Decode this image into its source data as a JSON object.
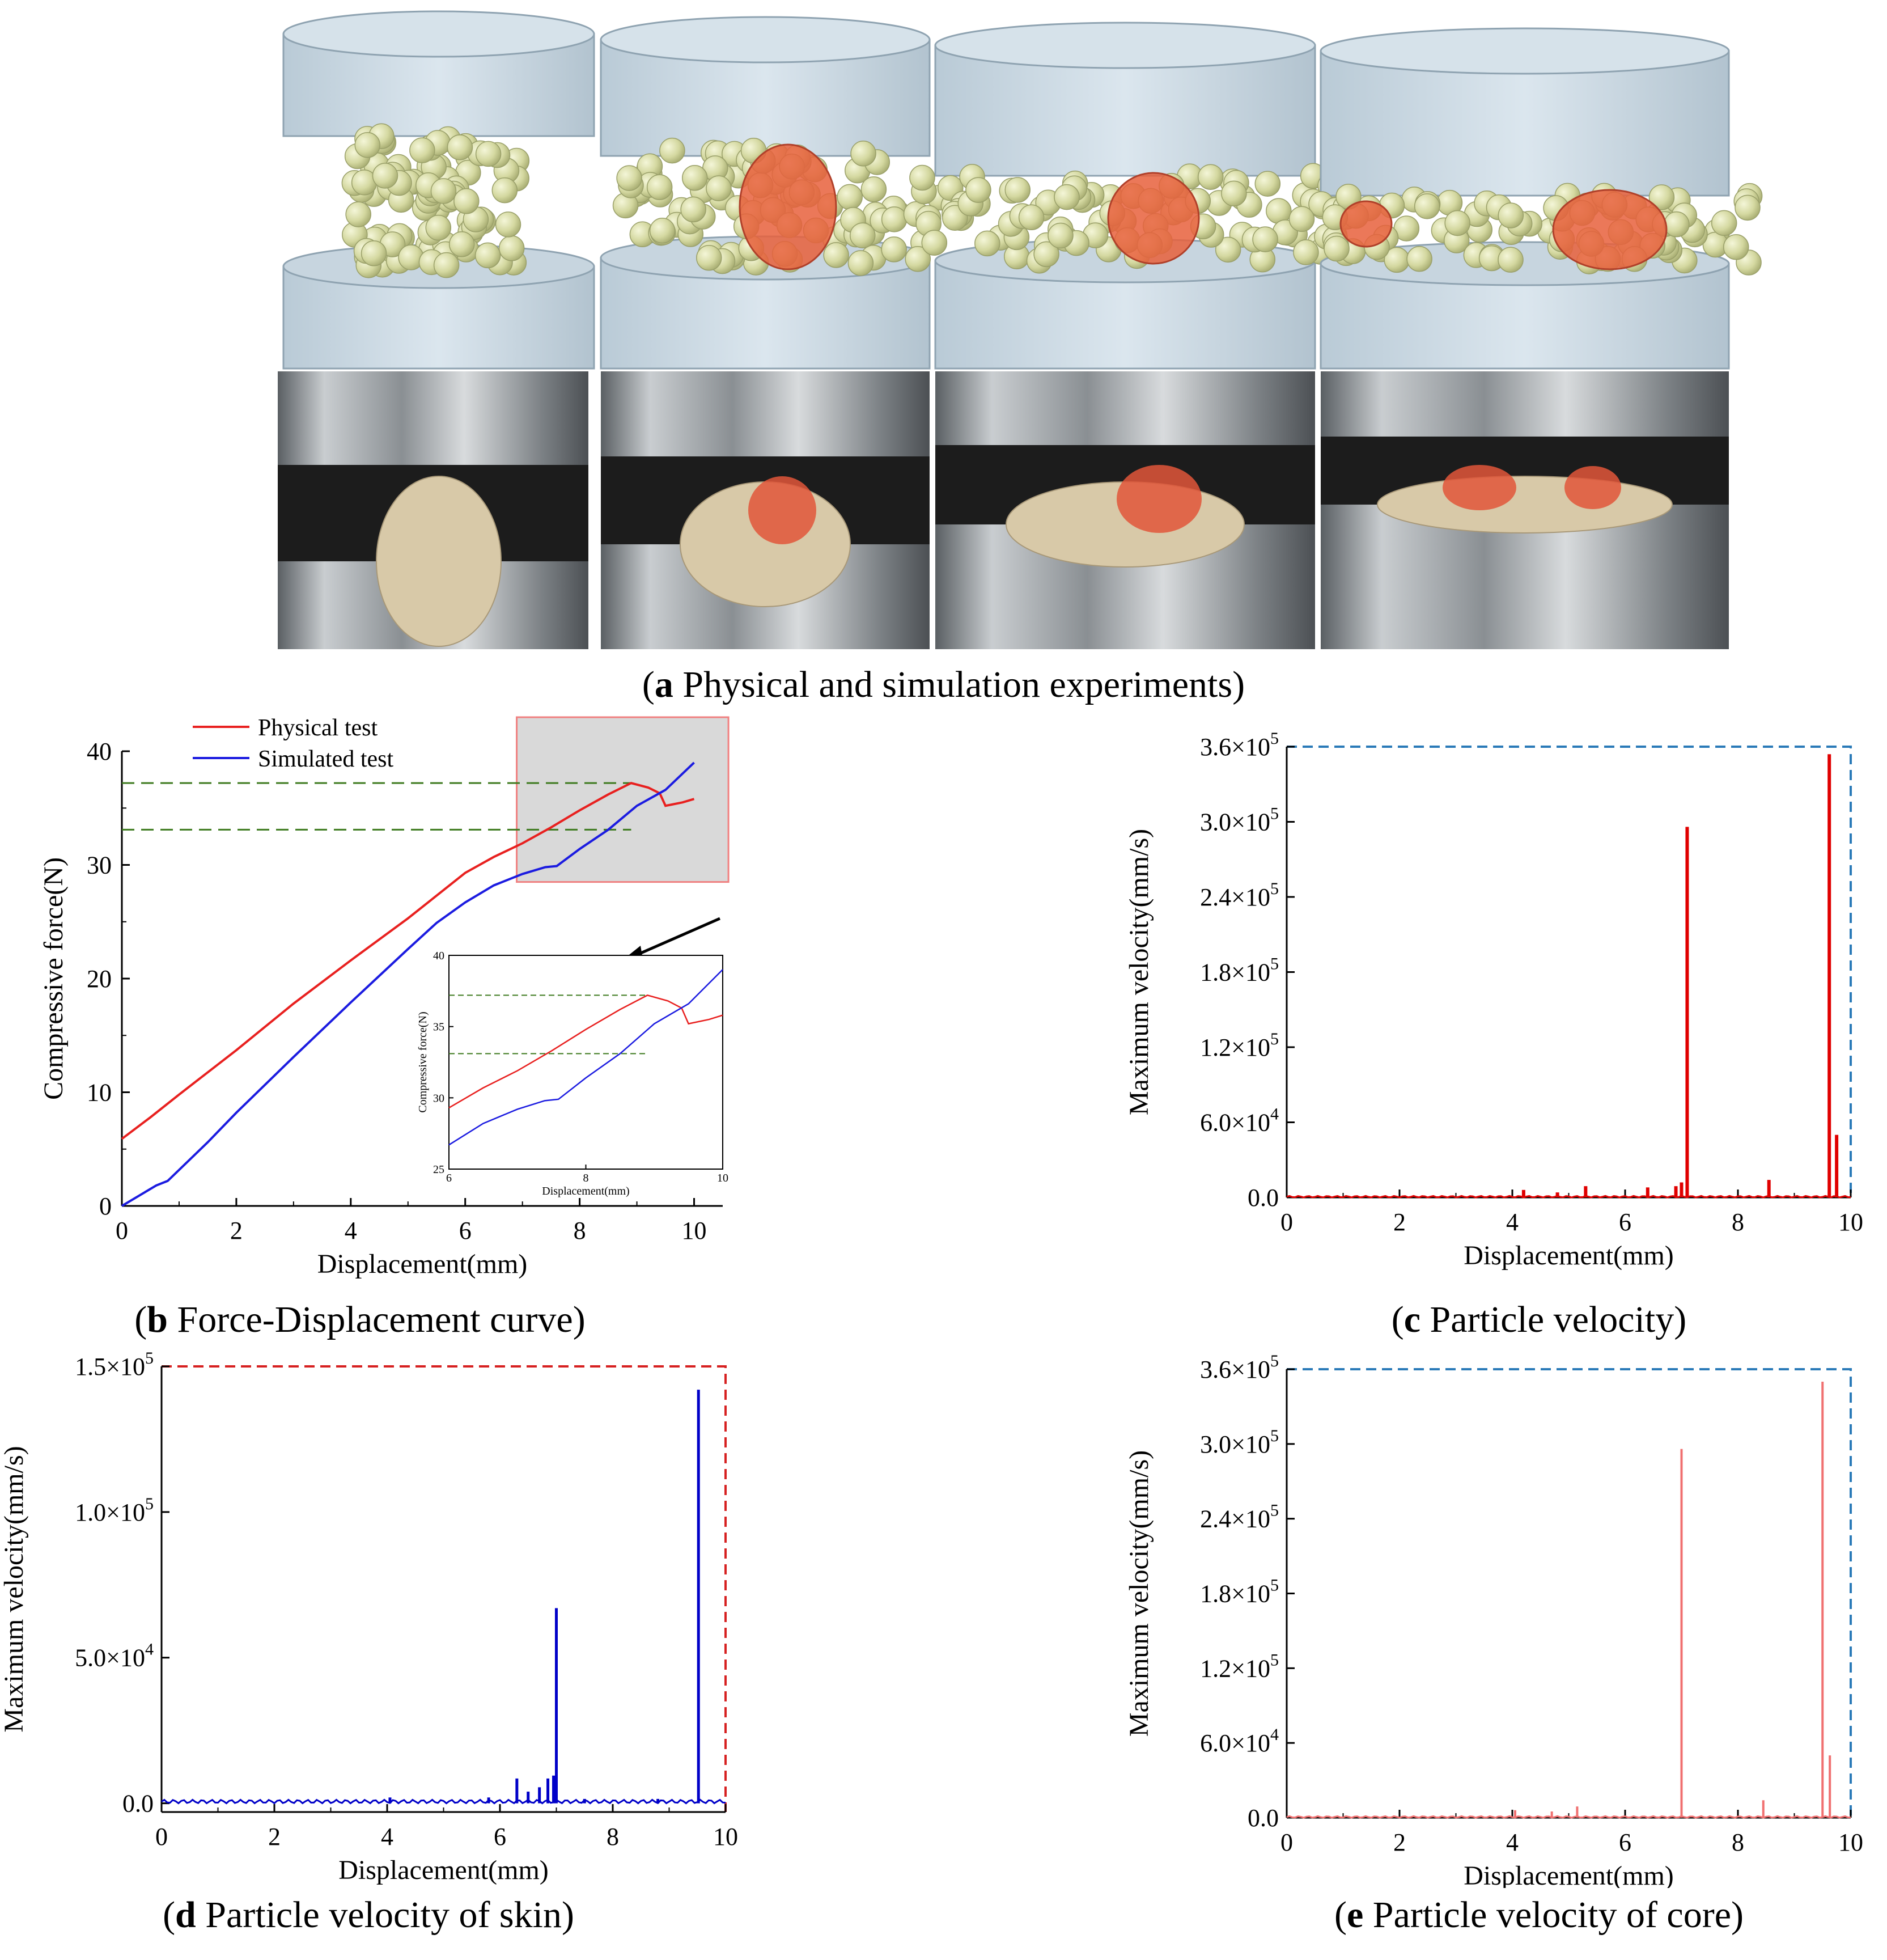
{
  "captions": {
    "a": {
      "letter": "a",
      "text": " Physical and simulation experiments"
    },
    "b": {
      "letter": "b",
      "text": " Force-Displacement curve"
    },
    "c": {
      "letter": "c",
      "text": " Particle velocity"
    },
    "d": {
      "letter": "d",
      "text": " Particle velocity of skin"
    },
    "e": {
      "letter": "e",
      "text": " Particle velocity of core"
    }
  },
  "colors": {
    "physical": "#e8201f",
    "simulated": "#1b1be0",
    "guide": "#3d7a1e",
    "velocity_all": "#e00000",
    "velocity_skin": "#0000c8",
    "velocity_core": "#f07070",
    "frame_blue": "#2a7ab8",
    "frame_red": "#d62020"
  },
  "chart_data": [
    {
      "id": "b",
      "type": "line",
      "xlabel": "Displacement(mm)",
      "ylabel": "Compressive force(N)",
      "xlim": [
        0,
        10.5
      ],
      "ylim": [
        0,
        40
      ],
      "xticks": [
        0,
        2,
        4,
        6,
        8,
        10
      ],
      "yticks": [
        0,
        10,
        20,
        30,
        40
      ],
      "guides_y": [
        37.2,
        33.1
      ],
      "zoom_box_x": [
        6.9,
        10.6
      ],
      "legend_position": "top-left",
      "series": [
        {
          "name": "Physical test",
          "x": [
            0,
            0.5,
            1,
            2,
            3,
            4,
            5,
            6,
            6.5,
            7,
            7.5,
            8,
            8.5,
            8.9,
            9.2,
            9.4,
            9.5,
            9.6,
            9.8,
            10
          ],
          "y": [
            5.9,
            7.8,
            9.8,
            13.7,
            17.8,
            21.6,
            25.3,
            29.3,
            30.7,
            31.9,
            33.3,
            34.8,
            36.2,
            37.2,
            36.8,
            36.3,
            35.2,
            35.3,
            35.5,
            35.8
          ]
        },
        {
          "name": "Simulated test",
          "x": [
            0,
            0.6,
            0.8,
            1.5,
            2,
            3,
            4,
            5,
            5.5,
            6,
            6.5,
            7,
            7.4,
            7.6,
            8,
            8.5,
            9,
            9.5,
            10
          ],
          "y": [
            0,
            1.8,
            2.2,
            5.6,
            8.2,
            13.1,
            17.9,
            22.6,
            24.9,
            26.7,
            28.2,
            29.2,
            29.8,
            29.9,
            31.4,
            33.1,
            35.2,
            36.6,
            39.0
          ]
        }
      ],
      "inset": {
        "xlabel": "Displacement(mm)",
        "ylabel": "Compressive force(N)",
        "xlim": [
          6,
          10
        ],
        "ylim": [
          25,
          40
        ],
        "xticks": [
          6,
          8,
          10
        ],
        "yticks": [
          25,
          30,
          35,
          40
        ]
      }
    },
    {
      "id": "c",
      "type": "line",
      "xlabel": "Displacement(mm)",
      "ylabel": "Maximum velocity(mm/s)",
      "xlim": [
        0,
        10
      ],
      "ylim": [
        0,
        360000
      ],
      "xticks": [
        0,
        2,
        4,
        6,
        8,
        10
      ],
      "ytick_labels": [
        [
          "0.0",
          ""
        ],
        [
          "6.0×10",
          "4"
        ],
        [
          "1.2×10",
          "5"
        ],
        [
          "1.8×10",
          "5"
        ],
        [
          "2.4×10",
          "5"
        ],
        [
          "3.0×10",
          "5"
        ],
        [
          "3.6×10",
          "5"
        ]
      ],
      "spikes": [
        [
          4.2,
          6000
        ],
        [
          4.8,
          4000
        ],
        [
          5.3,
          9000
        ],
        [
          6.4,
          8000
        ],
        [
          6.9,
          9000
        ],
        [
          7.0,
          12000
        ],
        [
          7.1,
          296000
        ],
        [
          8.55,
          14000
        ],
        [
          9.62,
          354000
        ],
        [
          9.75,
          50000
        ]
      ]
    },
    {
      "id": "d",
      "type": "line",
      "xlabel": "Displacement(mm)",
      "ylabel": "Maximum velocity(mm/s)",
      "xlim": [
        0,
        10
      ],
      "ylim": [
        -3000,
        150000
      ],
      "xticks": [
        0,
        2,
        4,
        6,
        8,
        10
      ],
      "ytick_values": [
        0,
        50000,
        100000,
        150000
      ],
      "ytick_labels": [
        [
          "0.0",
          ""
        ],
        [
          "5.0×10",
          "4"
        ],
        [
          "1.0×10",
          "5"
        ],
        [
          "1.5×10",
          "5"
        ]
      ],
      "spikes": [
        [
          4.05,
          2000
        ],
        [
          5.8,
          2000
        ],
        [
          6.3,
          8500
        ],
        [
          6.5,
          4000
        ],
        [
          6.7,
          5500
        ],
        [
          6.85,
          8500
        ],
        [
          6.95,
          9500
        ],
        [
          7.0,
          67000
        ],
        [
          7.5,
          1500
        ],
        [
          8.8,
          1500
        ],
        [
          9.52,
          142000
        ]
      ]
    },
    {
      "id": "e",
      "type": "line",
      "xlabel": "Displacement(mm)",
      "ylabel": "Maximum velocity(mm/s)",
      "xlim": [
        0,
        10
      ],
      "ylim": [
        0,
        360000
      ],
      "xticks": [
        0,
        2,
        4,
        6,
        8,
        10
      ],
      "ytick_labels": [
        [
          "0.0",
          ""
        ],
        [
          "6.0×10",
          "4"
        ],
        [
          "1.2×10",
          "5"
        ],
        [
          "1.8×10",
          "5"
        ],
        [
          "2.4×10",
          "5"
        ],
        [
          "3.0×10",
          "5"
        ],
        [
          "3.6×10",
          "5"
        ]
      ],
      "spikes": [
        [
          4.05,
          6000
        ],
        [
          4.7,
          5000
        ],
        [
          5.15,
          9000
        ],
        [
          7.0,
          296000
        ],
        [
          8.45,
          14000
        ],
        [
          9.5,
          350000
        ],
        [
          9.63,
          50000
        ]
      ]
    }
  ]
}
